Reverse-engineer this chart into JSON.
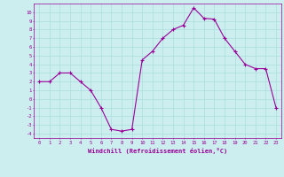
{
  "x": [
    0,
    1,
    2,
    3,
    4,
    5,
    6,
    7,
    8,
    9,
    10,
    11,
    12,
    13,
    14,
    15,
    16,
    17,
    18,
    19,
    20,
    21,
    22,
    23
  ],
  "y": [
    2,
    2,
    3,
    3,
    2,
    1,
    -1,
    -3.5,
    -3.7,
    -3.5,
    4.5,
    5.5,
    7,
    8,
    8.5,
    10.5,
    9.3,
    9.2,
    7,
    5.5,
    4,
    3.5,
    3.5,
    -1
  ],
  "line_color": "#990099",
  "marker": "+",
  "background_color": "#cceeee",
  "grid_color": "#aadddd",
  "xlabel": "Windchill (Refroidissement éolien,°C)",
  "xlabel_color": "#990099",
  "tick_color": "#990099",
  "ylim": [
    -4.5,
    11
  ],
  "xlim": [
    -0.5,
    23.5
  ],
  "yticks": [
    -4,
    -3,
    -2,
    -1,
    0,
    1,
    2,
    3,
    4,
    5,
    6,
    7,
    8,
    9,
    10
  ],
  "xticks": [
    0,
    1,
    2,
    3,
    4,
    5,
    6,
    7,
    8,
    9,
    10,
    11,
    12,
    13,
    14,
    15,
    16,
    17,
    18,
    19,
    20,
    21,
    22,
    23
  ]
}
